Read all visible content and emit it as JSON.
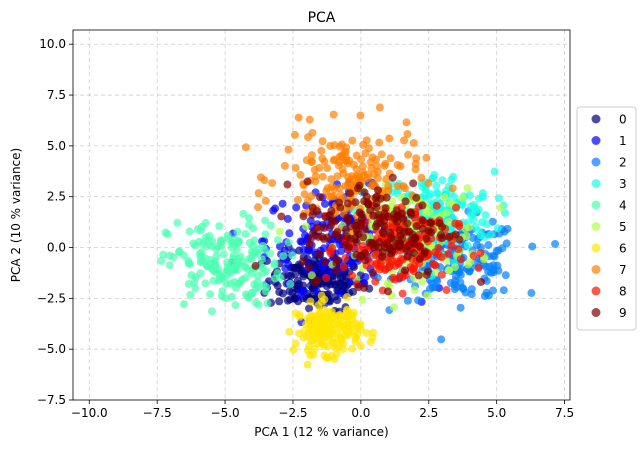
{
  "chart_data": {
    "type": "scatter",
    "title": "PCA",
    "xlabel": "PCA 1 (12 % variance)",
    "ylabel": "PCA 2 (10 % variance)",
    "xlim": [
      -10.6,
      7.7
    ],
    "ylim": [
      -7.5,
      10.7
    ],
    "xticks": [
      -10.0,
      -7.5,
      -5.0,
      -2.5,
      0.0,
      2.5,
      5.0,
      7.5
    ],
    "xtick_labels": [
      "−10.0",
      "−7.5",
      "−5.0",
      "−2.5",
      "0.0",
      "2.5",
      "5.0",
      "7.5"
    ],
    "yticks": [
      -7.5,
      -5.0,
      -2.5,
      0.0,
      2.5,
      5.0,
      7.5,
      10.0
    ],
    "ytick_labels": [
      "−7.5",
      "−5.0",
      "−2.5",
      "0.0",
      "2.5",
      "5.0",
      "7.5",
      "10.0"
    ],
    "grid": true,
    "legend_position": "outside-right",
    "marker_alpha": 0.7,
    "series": [
      {
        "name": "0",
        "color": "#00007f",
        "center": [
          -1.6,
          -1.6
        ],
        "spread": [
          1.2,
          1.0
        ],
        "count": 180
      },
      {
        "name": "1",
        "color": "#0000ff",
        "center": [
          -0.8,
          0.4
        ],
        "spread": [
          1.8,
          1.6
        ],
        "count": 180
      },
      {
        "name": "2",
        "color": "#007fff",
        "center": [
          3.6,
          -0.6
        ],
        "spread": [
          1.5,
          1.3
        ],
        "count": 180
      },
      {
        "name": "3",
        "color": "#19ffe5",
        "center": [
          2.8,
          1.6
        ],
        "spread": [
          1.4,
          1.4
        ],
        "count": 180
      },
      {
        "name": "4",
        "color": "#4cffb2",
        "center": [
          -5.0,
          -0.8
        ],
        "spread": [
          1.4,
          1.4
        ],
        "count": 180
      },
      {
        "name": "5",
        "color": "#b2ff4c",
        "center": [
          1.8,
          0.6
        ],
        "spread": [
          1.7,
          1.5
        ],
        "count": 180
      },
      {
        "name": "6",
        "color": "#ffe500",
        "center": [
          -1.2,
          -4.0
        ],
        "spread": [
          0.8,
          0.8
        ],
        "count": 180
      },
      {
        "name": "7",
        "color": "#ff7f00",
        "center": [
          -0.4,
          3.4
        ],
        "spread": [
          1.7,
          1.6
        ],
        "count": 180
      },
      {
        "name": "8",
        "color": "#ff1300",
        "center": [
          1.4,
          0.0
        ],
        "spread": [
          1.4,
          1.3
        ],
        "count": 180
      },
      {
        "name": "9",
        "color": "#7f0000",
        "center": [
          0.6,
          0.9
        ],
        "spread": [
          1.8,
          1.6
        ],
        "count": 180
      }
    ]
  }
}
